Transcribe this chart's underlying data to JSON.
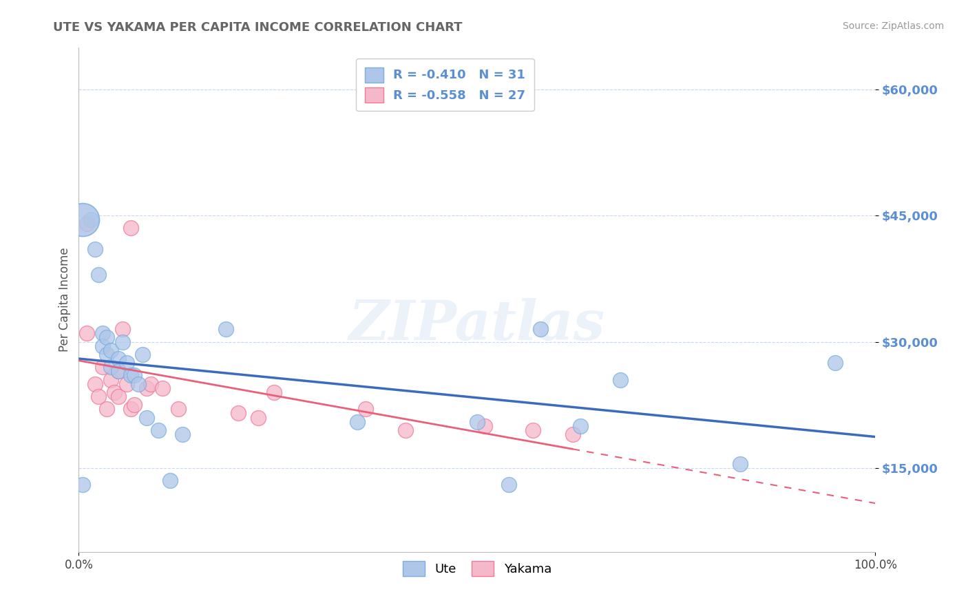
{
  "title": "UTE VS YAKAMA PER CAPITA INCOME CORRELATION CHART",
  "source": "Source: ZipAtlas.com",
  "ylabel": "Per Capita Income",
  "xlim": [
    0,
    1.0
  ],
  "ylim": [
    5000,
    65000
  ],
  "ytick_labels": [
    "$15,000",
    "$30,000",
    "$45,000",
    "$60,000"
  ],
  "ytick_values": [
    15000,
    30000,
    45000,
    60000
  ],
  "legend_r": [
    "R = -0.410",
    "R = -0.558"
  ],
  "legend_n": [
    "N = 31",
    "N = 27"
  ],
  "ute_color": "#aec6e8",
  "yakama_color": "#f5b8ca",
  "ute_edge_color": "#7aade0",
  "yakama_edge_color": "#f07898",
  "ute_line_color": "#3a6bbf",
  "yakama_line_color": "#e8607a",
  "label_color": "#5b8fd4",
  "background_color": "#ffffff",
  "grid_color": "#c8d8ee",
  "watermark": "ZIPatlas",
  "title_color": "#666666",
  "ute_x": [
    0.005,
    0.015,
    0.02,
    0.025,
    0.03,
    0.03,
    0.035,
    0.035,
    0.04,
    0.04,
    0.05,
    0.05,
    0.055,
    0.06,
    0.065,
    0.07,
    0.075,
    0.08,
    0.085,
    0.1,
    0.115,
    0.13,
    0.185,
    0.35,
    0.5,
    0.54,
    0.58,
    0.63,
    0.68,
    0.83,
    0.95
  ],
  "ute_y": [
    13000,
    44500,
    41000,
    38000,
    31000,
    29500,
    30500,
    28500,
    29000,
    27000,
    28000,
    26500,
    30000,
    27500,
    26000,
    26000,
    25000,
    28500,
    21000,
    19500,
    13500,
    19000,
    31500,
    20500,
    20500,
    13000,
    31500,
    20000,
    25500,
    15500,
    27500
  ],
  "ute_big_x": [
    0.005
  ],
  "ute_big_y": [
    44500
  ],
  "yakama_x": [
    0.01,
    0.01,
    0.02,
    0.025,
    0.03,
    0.035,
    0.04,
    0.045,
    0.05,
    0.05,
    0.055,
    0.06,
    0.065,
    0.065,
    0.07,
    0.085,
    0.09,
    0.105,
    0.125,
    0.2,
    0.225,
    0.245,
    0.36,
    0.41,
    0.51,
    0.57,
    0.62
  ],
  "yakama_y": [
    44000,
    31000,
    25000,
    23500,
    27000,
    22000,
    25500,
    24000,
    26500,
    23500,
    31500,
    25000,
    22000,
    43500,
    22500,
    24500,
    25000,
    24500,
    22000,
    21500,
    21000,
    24000,
    22000,
    19500,
    20000,
    19500,
    19000
  ],
  "marker_size": 250,
  "big_marker_size": 1200
}
